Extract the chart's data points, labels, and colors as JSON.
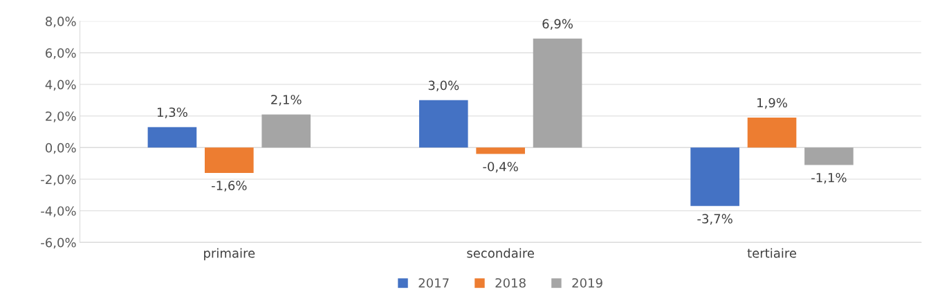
{
  "chart_data": {
    "type": "bar",
    "categories": [
      "primaire",
      "secondaire",
      "tertiaire"
    ],
    "series": [
      {
        "name": "2017",
        "color": "#4472c4",
        "values": [
          1.3,
          3.0,
          -3.7
        ],
        "value_labels": [
          "1,3%",
          "3,0%",
          "-3,7%"
        ]
      },
      {
        "name": "2018",
        "color": "#ed7d31",
        "values": [
          -1.6,
          -0.4,
          1.9
        ],
        "value_labels": [
          "-1,6%",
          "-0,4%",
          "1,9%"
        ]
      },
      {
        "name": "2019",
        "color": "#a5a5a5",
        "values": [
          2.1,
          6.9,
          -1.1
        ],
        "value_labels": [
          "2,1%",
          "6,9%",
          "-1,1%"
        ]
      }
    ],
    "ylim": [
      -6,
      8
    ],
    "yticks": [
      {
        "value": -6,
        "label": "-6,0%"
      },
      {
        "value": -4,
        "label": "-4,0%"
      },
      {
        "value": -2,
        "label": "-2,0%"
      },
      {
        "value": 0,
        "label": "0,0%"
      },
      {
        "value": 2,
        "label": "2,0%"
      },
      {
        "value": 4,
        "label": "4,0%"
      },
      {
        "value": 6,
        "label": "6,0%"
      },
      {
        "value": 8,
        "label": "8,0%"
      }
    ],
    "grid": "y",
    "legend": "bottom"
  }
}
